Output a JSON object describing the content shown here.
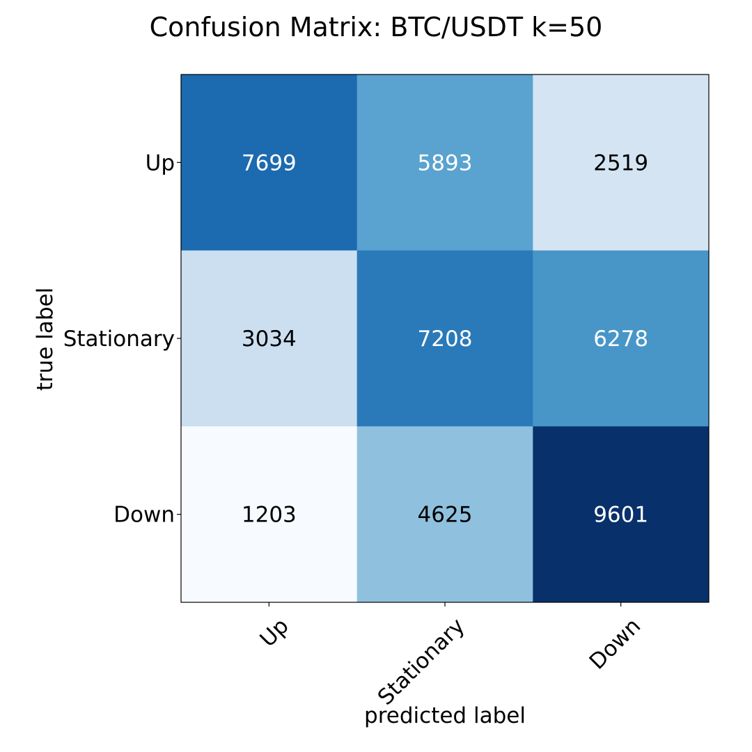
{
  "chart_data": {
    "type": "heatmap",
    "title": "Confusion Matrix: BTC/USDT k=50",
    "xlabel": "predicted label",
    "ylabel": "true label",
    "x_categories": [
      "Up",
      "Stationary",
      "Down"
    ],
    "y_categories": [
      "Up",
      "Stationary",
      "Down"
    ],
    "values": [
      [
        7699,
        5893,
        2519
      ],
      [
        3034,
        7208,
        6278
      ],
      [
        1203,
        4625,
        9601
      ]
    ],
    "cell_colors": [
      [
        "#1c6aaf",
        "#5aa2cf",
        "#d4e4f3"
      ],
      [
        "#cbdff0",
        "#2a7ab9",
        "#4896c8"
      ],
      [
        "#f7fbff",
        "#8fc1de",
        "#08306b"
      ]
    ],
    "label_colors": [
      [
        "#ffffff",
        "#ffffff",
        "#000000"
      ],
      [
        "#000000",
        "#ffffff",
        "#ffffff"
      ],
      [
        "#000000",
        "#000000",
        "#ffffff"
      ]
    ],
    "colormap": "Blues"
  }
}
